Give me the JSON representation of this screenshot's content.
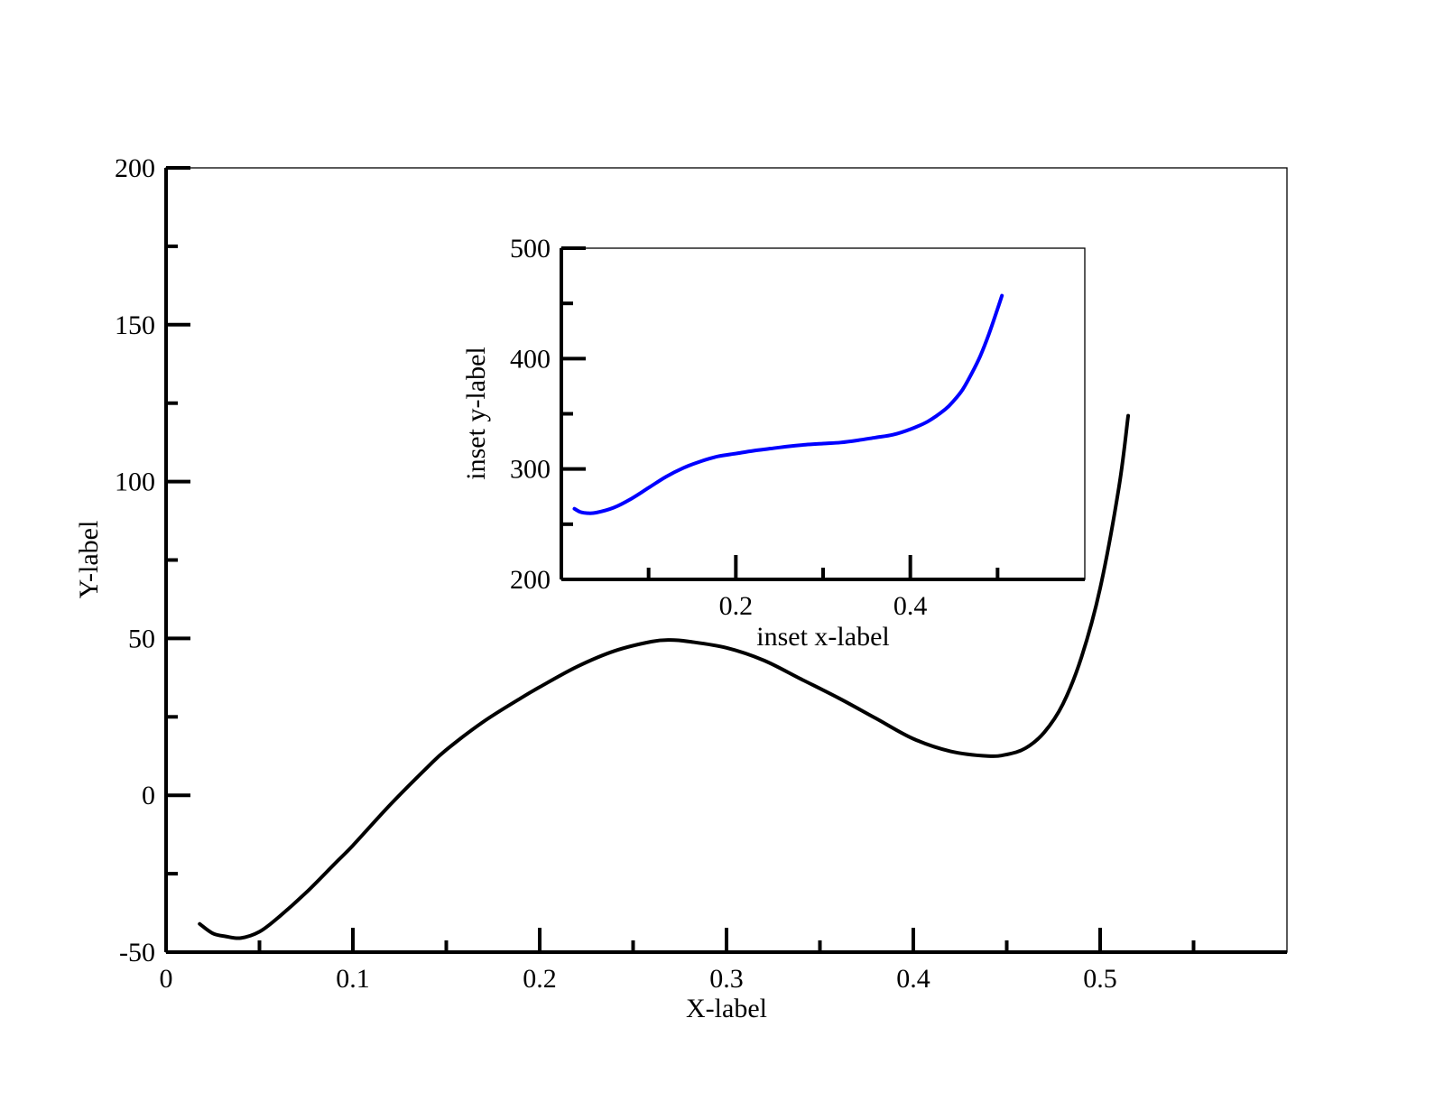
{
  "chart_data": [
    {
      "id": "main",
      "type": "line",
      "xlabel": "X-label",
      "ylabel": "Y-label",
      "xlim": [
        0,
        0.6
      ],
      "ylim": [
        -50,
        200
      ],
      "x_major_ticks": [
        0,
        0.1,
        0.2,
        0.3,
        0.4,
        0.5
      ],
      "x_tick_labels": [
        "0",
        "0.1",
        "0.2",
        "0.3",
        "0.4",
        "0.5"
      ],
      "x_minor_ticks": [
        0.05,
        0.15,
        0.25,
        0.35,
        0.45,
        0.55
      ],
      "y_major_ticks": [
        -50,
        0,
        50,
        100,
        150,
        200
      ],
      "y_tick_labels": [
        "-50",
        "0",
        "50",
        "100",
        "150",
        "200"
      ],
      "y_minor_ticks": [
        -25,
        25,
        75,
        125,
        175
      ],
      "grid": false,
      "series": [
        {
          "color": "#000000",
          "x": [
            0.018,
            0.025,
            0.032,
            0.04,
            0.05,
            0.06,
            0.075,
            0.09,
            0.1,
            0.12,
            0.14,
            0.15,
            0.17,
            0.19,
            0.2,
            0.22,
            0.24,
            0.26,
            0.27,
            0.28,
            0.3,
            0.32,
            0.34,
            0.36,
            0.38,
            0.4,
            0.42,
            0.44,
            0.45,
            0.46,
            0.47,
            0.48,
            0.49,
            0.5,
            0.51,
            0.515
          ],
          "y": [
            -41,
            -44,
            -45,
            -45.5,
            -43.5,
            -39,
            -31,
            -22,
            -16,
            -3,
            9,
            14.5,
            23.5,
            31,
            34.5,
            41,
            46,
            49,
            49.5,
            49,
            47,
            43,
            37,
            31,
            24.5,
            18,
            14,
            12.5,
            13,
            15,
            20,
            29,
            44,
            66,
            98,
            121
          ]
        }
      ]
    },
    {
      "id": "inset",
      "type": "line",
      "xlabel": "inset x-label",
      "ylabel": "inset y-label",
      "xlim": [
        0,
        0.6
      ],
      "ylim": [
        200,
        500
      ],
      "x_major_ticks": [
        0.2,
        0.4
      ],
      "x_tick_labels": [
        "0.2",
        "0.4"
      ],
      "x_minor_ticks": [
        0.1,
        0.3,
        0.5
      ],
      "y_major_ticks": [
        200,
        300,
        400,
        500
      ],
      "y_tick_labels": [
        "200",
        "300",
        "400",
        "500"
      ],
      "y_minor_ticks": [
        250,
        350,
        450
      ],
      "grid": false,
      "series": [
        {
          "color": "#0000ff",
          "x": [
            0.015,
            0.022,
            0.03,
            0.04,
            0.06,
            0.08,
            0.1,
            0.12,
            0.14,
            0.16,
            0.18,
            0.2,
            0.22,
            0.24,
            0.26,
            0.28,
            0.3,
            0.32,
            0.34,
            0.36,
            0.38,
            0.4,
            0.42,
            0.44,
            0.45,
            0.46,
            0.47,
            0.48,
            0.49,
            0.5,
            0.505
          ],
          "y": [
            264,
            261,
            260,
            260.5,
            265,
            273,
            283,
            293,
            301,
            307,
            311.5,
            314,
            316.5,
            318.5,
            320.5,
            322,
            323,
            324,
            326,
            328.5,
            331,
            336,
            343,
            354,
            362,
            372,
            386,
            402,
            422,
            445,
            457
          ]
        }
      ]
    }
  ]
}
